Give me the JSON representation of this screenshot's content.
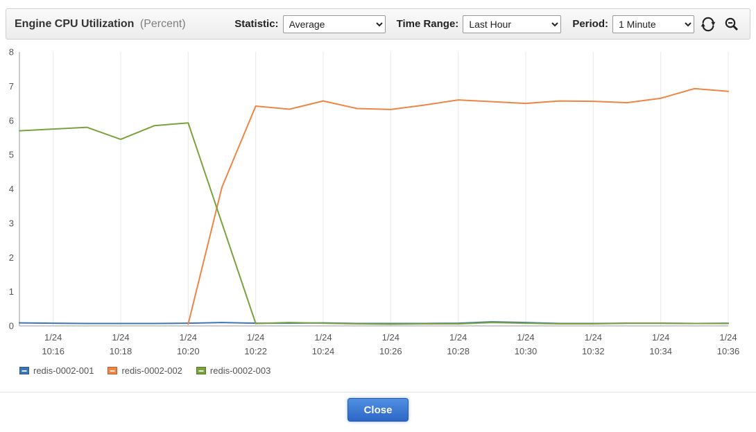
{
  "header": {
    "title": "Engine CPU Utilization",
    "title_suffix": "(Percent)",
    "statistic_label": "Statistic:",
    "statistic_value": "Average",
    "time_range_label": "Time Range:",
    "time_range_value": "Last Hour",
    "period_label": "Period:",
    "period_value": "1 Minute",
    "icons": {
      "refresh": "refresh-icon",
      "zoom_out": "zoom-out-icon"
    }
  },
  "chart_data": {
    "type": "line",
    "title": "Engine CPU Utilization (Percent)",
    "ylabel": "Percent",
    "ylim": [
      0,
      8
    ],
    "yticks": [
      0,
      1,
      2,
      3,
      4,
      5,
      6,
      7,
      8
    ],
    "grid": "vertical",
    "legend_position": "bottom-left",
    "x": [
      "10:15",
      "10:16",
      "10:17",
      "10:18",
      "10:19",
      "10:20",
      "10:21",
      "10:22",
      "10:23",
      "10:24",
      "10:25",
      "10:26",
      "10:27",
      "10:28",
      "10:29",
      "10:30",
      "10:31",
      "10:32",
      "10:33",
      "10:34",
      "10:35",
      "10:36"
    ],
    "xticks": [
      {
        "date": "1/24",
        "time": "10:16"
      },
      {
        "date": "1/24",
        "time": "10:18"
      },
      {
        "date": "1/24",
        "time": "10:20"
      },
      {
        "date": "1/24",
        "time": "10:22"
      },
      {
        "date": "1/24",
        "time": "10:24"
      },
      {
        "date": "1/24",
        "time": "10:26"
      },
      {
        "date": "1/24",
        "time": "10:28"
      },
      {
        "date": "1/24",
        "time": "10:30"
      },
      {
        "date": "1/24",
        "time": "10:32"
      },
      {
        "date": "1/24",
        "time": "10:34"
      },
      {
        "date": "1/24",
        "time": "10:36"
      }
    ],
    "series": [
      {
        "name": "redis-0002-001",
        "color": "#3e76b5",
        "values": [
          0.09,
          0.08,
          0.07,
          0.07,
          0.07,
          0.08,
          0.1,
          0.08,
          0.08,
          0.09,
          0.07,
          0.07,
          0.07,
          0.08,
          0.12,
          0.1,
          0.07,
          0.07,
          0.08,
          0.08,
          0.07,
          0.08
        ]
      },
      {
        "name": "redis-0002-002",
        "color": "#ef8443",
        "values": [
          null,
          null,
          null,
          null,
          null,
          0.05,
          4.05,
          6.42,
          6.33,
          6.57,
          6.35,
          6.32,
          6.45,
          6.6,
          6.55,
          6.5,
          6.57,
          6.56,
          6.52,
          6.65,
          6.93,
          6.85
        ]
      },
      {
        "name": "redis-0002-003",
        "color": "#79a23c",
        "values": [
          5.7,
          5.75,
          5.8,
          5.45,
          5.85,
          5.93,
          3.0,
          0.07,
          0.1,
          0.08,
          0.06,
          0.05,
          0.06,
          0.06,
          0.1,
          0.08,
          0.06,
          0.06,
          0.08,
          0.08,
          0.07,
          0.07
        ]
      }
    ]
  },
  "footer": {
    "close_label": "Close"
  }
}
